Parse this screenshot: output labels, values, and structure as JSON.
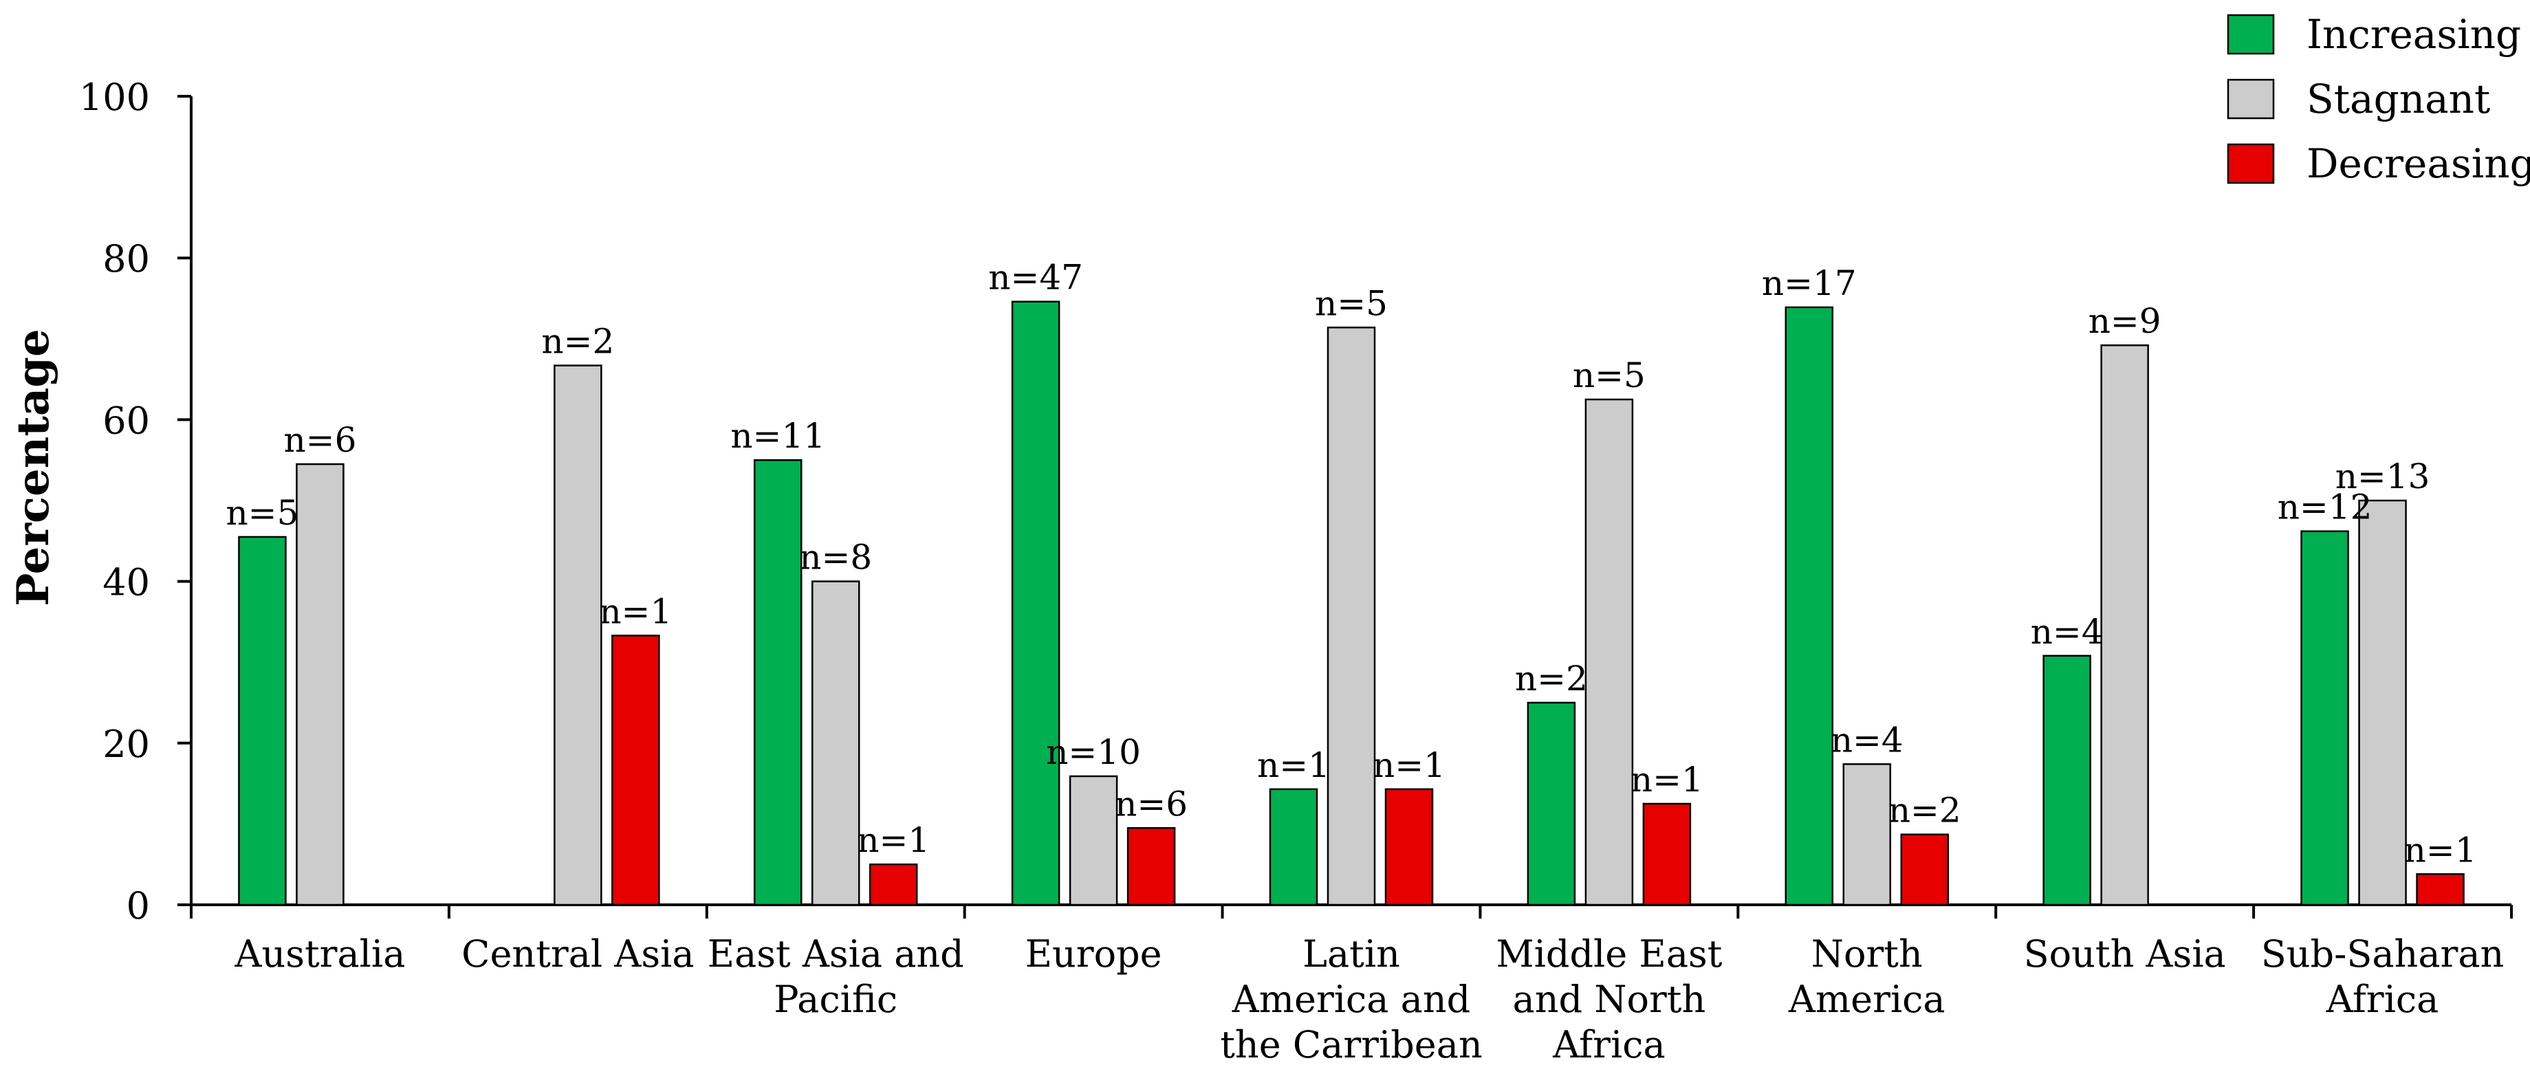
{
  "chart_data": {
    "type": "bar",
    "title": "",
    "xlabel": "",
    "ylabel": "Percentage",
    "ylim": [
      0,
      100
    ],
    "yticks": [
      0,
      20,
      40,
      60,
      80,
      100
    ],
    "grid": false,
    "legend_position": "top-right",
    "categories": [
      "Australia",
      "Central Asia",
      "East Asia and Pacific",
      "Europe",
      "Latin America and the Carribean",
      "Middle East and North Africa",
      "North America",
      "South Asia",
      "Sub-Saharan Africa"
    ],
    "category_label_lines": [
      [
        "Australia"
      ],
      [
        "Central Asia"
      ],
      [
        "East Asia and",
        "Pacific"
      ],
      [
        "Europe"
      ],
      [
        "Latin",
        "America and",
        "the Carribean"
      ],
      [
        "Middle East",
        "and North",
        "Africa"
      ],
      [
        "North",
        "America"
      ],
      [
        "South Asia"
      ],
      [
        "Sub-Saharan",
        "Africa"
      ]
    ],
    "series": [
      {
        "name": "Increasing",
        "color": "#00b050",
        "values": [
          45.5,
          null,
          55.0,
          74.6,
          14.3,
          25.0,
          73.9,
          30.8,
          46.2
        ],
        "labels": [
          "n=5",
          null,
          "n=11",
          "n=47",
          "n=1",
          "n=2",
          "n=17",
          "n=4",
          "n=12"
        ]
      },
      {
        "name": "Stagnant",
        "color": "#cccccc",
        "values": [
          54.5,
          66.7,
          40.0,
          15.9,
          71.4,
          62.5,
          17.4,
          69.2,
          50.0
        ],
        "labels": [
          "n=6",
          "n=2",
          "n=8",
          "n=10",
          "n=5",
          "n=5",
          "n=4",
          "n=9",
          "n=13"
        ]
      },
      {
        "name": "Decreasing",
        "color": "#e60000",
        "values": [
          null,
          33.3,
          5.0,
          9.5,
          14.3,
          12.5,
          8.7,
          null,
          3.8
        ],
        "labels": [
          null,
          "n=1",
          "n=1",
          "n=6",
          "n=1",
          "n=1",
          "n=2",
          null,
          "n=1"
        ]
      }
    ]
  }
}
